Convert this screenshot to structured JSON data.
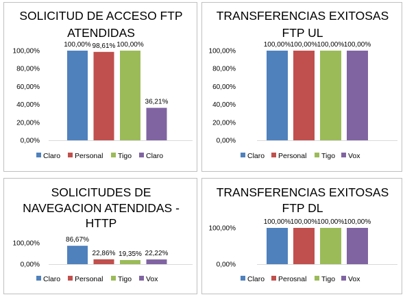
{
  "chart_data": [
    {
      "type": "bar",
      "title_lines": [
        "SOLICITUD DE ACCESO FTP",
        "ATENDIDAS"
      ],
      "categories": [
        "Claro",
        "Personal",
        "Tigo",
        "Claro"
      ],
      "values": [
        100.0,
        98.61,
        100.0,
        36.21
      ],
      "value_labels": [
        "100,00%",
        "98,61%",
        "100,00%",
        "36,21%"
      ],
      "colors": [
        "#4f81bd",
        "#c0504d",
        "#9bbb59",
        "#8064a2"
      ],
      "yticks": [
        "0,00%",
        "20,00%",
        "40,00%",
        "60,00%",
        "80,00%",
        "100,00%"
      ],
      "ylim": [
        0,
        100
      ],
      "legend": [
        "Claro",
        "Personal",
        "Tigo",
        "Claro"
      ],
      "legend_position": "bottom",
      "grid": false
    },
    {
      "type": "bar",
      "title_lines": [
        "TRANSFERENCIAS EXITOSAS",
        "FTP UL"
      ],
      "categories": [
        "Claro",
        "Personal",
        "Tigo",
        "Vox"
      ],
      "values": [
        100.0,
        100.0,
        100.0,
        100.0
      ],
      "value_labels": [
        "100,00%",
        "100,00%",
        "100,00%",
        "100,00%"
      ],
      "colors": [
        "#4f81bd",
        "#c0504d",
        "#9bbb59",
        "#8064a2"
      ],
      "yticks": [
        "0,00%",
        "20,00%",
        "40,00%",
        "60,00%",
        "80,00%",
        "100,00%"
      ],
      "ylim": [
        0,
        100
      ],
      "legend": [
        "Claro",
        "Personal",
        "Tigo",
        "Vox"
      ],
      "legend_position": "bottom",
      "grid": false
    },
    {
      "type": "bar",
      "title_lines": [
        "SOLICITUDES DE",
        "NAVEGACION ATENDIDAS -",
        "HTTP"
      ],
      "categories": [
        "Claro",
        "Personal",
        "Tigo",
        "Vox"
      ],
      "values": [
        86.67,
        22.86,
        19.35,
        22.22
      ],
      "value_labels": [
        "86,67%",
        "22,86%",
        "19,35%",
        "22,22%"
      ],
      "colors": [
        "#4f81bd",
        "#c0504d",
        "#9bbb59",
        "#8064a2"
      ],
      "yticks": [
        "0,00%",
        "100,00%"
      ],
      "ylim": [
        0,
        100
      ],
      "legend": [
        "Claro",
        "Personal",
        "Tigo",
        "Vox"
      ],
      "legend_position": "bottom",
      "grid": false
    },
    {
      "type": "bar",
      "title_lines": [
        "TRANSFERENCIAS EXITOSAS",
        "FTP DL"
      ],
      "categories": [
        "Claro",
        "Perosnal",
        "Tigo",
        "Vox"
      ],
      "values": [
        100.0,
        100.0,
        100.0,
        100.0
      ],
      "value_labels": [
        "100,00%",
        "100,00%",
        "100,00%",
        "100,00%"
      ],
      "colors": [
        "#4f81bd",
        "#c0504d",
        "#9bbb59",
        "#8064a2"
      ],
      "yticks": [
        "0,00%",
        "100,00%"
      ],
      "ylim": [
        0,
        100
      ],
      "legend": [
        "Claro",
        "Perosnal",
        "Tigo",
        "Vox"
      ],
      "legend_position": "bottom",
      "grid": false
    }
  ]
}
